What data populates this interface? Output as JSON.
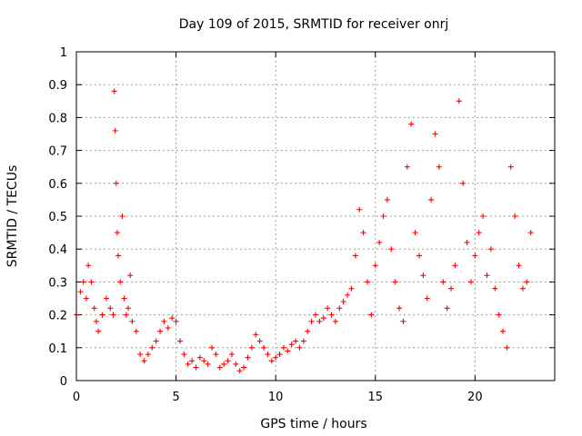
{
  "chart_data": {
    "type": "scatter",
    "title": "Day 109 of 2015, SRMTID for receiver onrj",
    "xlabel": "GPS time / hours",
    "ylabel": "SRMTID / TECUs",
    "xlim": [
      0,
      24
    ],
    "ylim": [
      0,
      1
    ],
    "xticks": [
      0,
      5,
      10,
      15,
      20
    ],
    "xtick_labels": [
      "0",
      "5",
      "10",
      "15",
      "20"
    ],
    "yticks": [
      0,
      0.1,
      0.2,
      0.3,
      0.4,
      0.5,
      0.6,
      0.7,
      0.8,
      0.9,
      1
    ],
    "ytick_labels": [
      "0",
      "0.1",
      "0.2",
      "0.3",
      "0.4",
      "0.5",
      "0.6",
      "0.7",
      "0.8",
      "0.9",
      "1"
    ],
    "grid": true,
    "marker": "+",
    "color": "#ff0000",
    "series": [
      {
        "name": "SRMTID",
        "x": [
          0.0,
          0.2,
          0.35,
          0.5,
          0.6,
          0.75,
          0.9,
          1.0,
          1.1,
          1.3,
          1.5,
          1.7,
          1.85,
          1.9,
          1.95,
          2.0,
          2.05,
          2.1,
          2.2,
          2.3,
          2.4,
          2.5,
          2.6,
          2.7,
          2.8,
          3.0,
          3.2,
          3.4,
          3.6,
          3.8,
          4.0,
          4.2,
          4.4,
          4.6,
          4.8,
          5.0,
          5.2,
          5.4,
          5.6,
          5.8,
          6.0,
          6.2,
          6.4,
          6.6,
          6.8,
          7.0,
          7.2,
          7.4,
          7.6,
          7.8,
          8.0,
          8.2,
          8.4,
          8.6,
          8.8,
          9.0,
          9.2,
          9.4,
          9.6,
          9.8,
          10.0,
          10.2,
          10.4,
          10.6,
          10.8,
          11.0,
          11.2,
          11.4,
          11.6,
          11.8,
          12.0,
          12.2,
          12.4,
          12.6,
          12.8,
          13.0,
          13.2,
          13.4,
          13.6,
          13.8,
          14.0,
          14.2,
          14.4,
          14.6,
          14.8,
          15.0,
          15.2,
          15.4,
          15.6,
          15.8,
          16.0,
          16.2,
          16.4,
          16.6,
          16.8,
          17.0,
          17.2,
          17.4,
          17.6,
          17.8,
          18.0,
          18.2,
          18.4,
          18.6,
          18.8,
          19.0,
          19.2,
          19.4,
          19.6,
          19.8,
          20.0,
          20.2,
          20.4,
          20.6,
          20.8,
          21.0,
          21.2,
          21.4,
          21.6,
          21.8,
          22.0,
          22.2,
          22.4,
          22.6,
          22.8
        ],
        "y": [
          0.2,
          0.27,
          0.3,
          0.25,
          0.35,
          0.3,
          0.22,
          0.18,
          0.15,
          0.2,
          0.25,
          0.22,
          0.2,
          0.88,
          0.76,
          0.6,
          0.45,
          0.38,
          0.3,
          0.5,
          0.25,
          0.2,
          0.22,
          0.32,
          0.18,
          0.15,
          0.08,
          0.06,
          0.08,
          0.1,
          0.12,
          0.15,
          0.18,
          0.16,
          0.19,
          0.18,
          0.12,
          0.08,
          0.05,
          0.06,
          0.04,
          0.07,
          0.06,
          0.05,
          0.1,
          0.08,
          0.04,
          0.05,
          0.06,
          0.08,
          0.05,
          0.03,
          0.04,
          0.07,
          0.1,
          0.14,
          0.12,
          0.1,
          0.08,
          0.06,
          0.07,
          0.08,
          0.1,
          0.09,
          0.11,
          0.12,
          0.1,
          0.12,
          0.15,
          0.18,
          0.2,
          0.18,
          0.19,
          0.22,
          0.2,
          0.18,
          0.22,
          0.24,
          0.26,
          0.28,
          0.38,
          0.52,
          0.45,
          0.3,
          0.2,
          0.35,
          0.42,
          0.5,
          0.55,
          0.4,
          0.3,
          0.22,
          0.18,
          0.65,
          0.78,
          0.45,
          0.38,
          0.32,
          0.25,
          0.55,
          0.75,
          0.65,
          0.3,
          0.22,
          0.28,
          0.35,
          0.85,
          0.6,
          0.42,
          0.3,
          0.38,
          0.45,
          0.5,
          0.32,
          0.4,
          0.28,
          0.2,
          0.15,
          0.1,
          0.65,
          0.5,
          0.35,
          0.28,
          0.3,
          0.45
        ]
      }
    ]
  }
}
